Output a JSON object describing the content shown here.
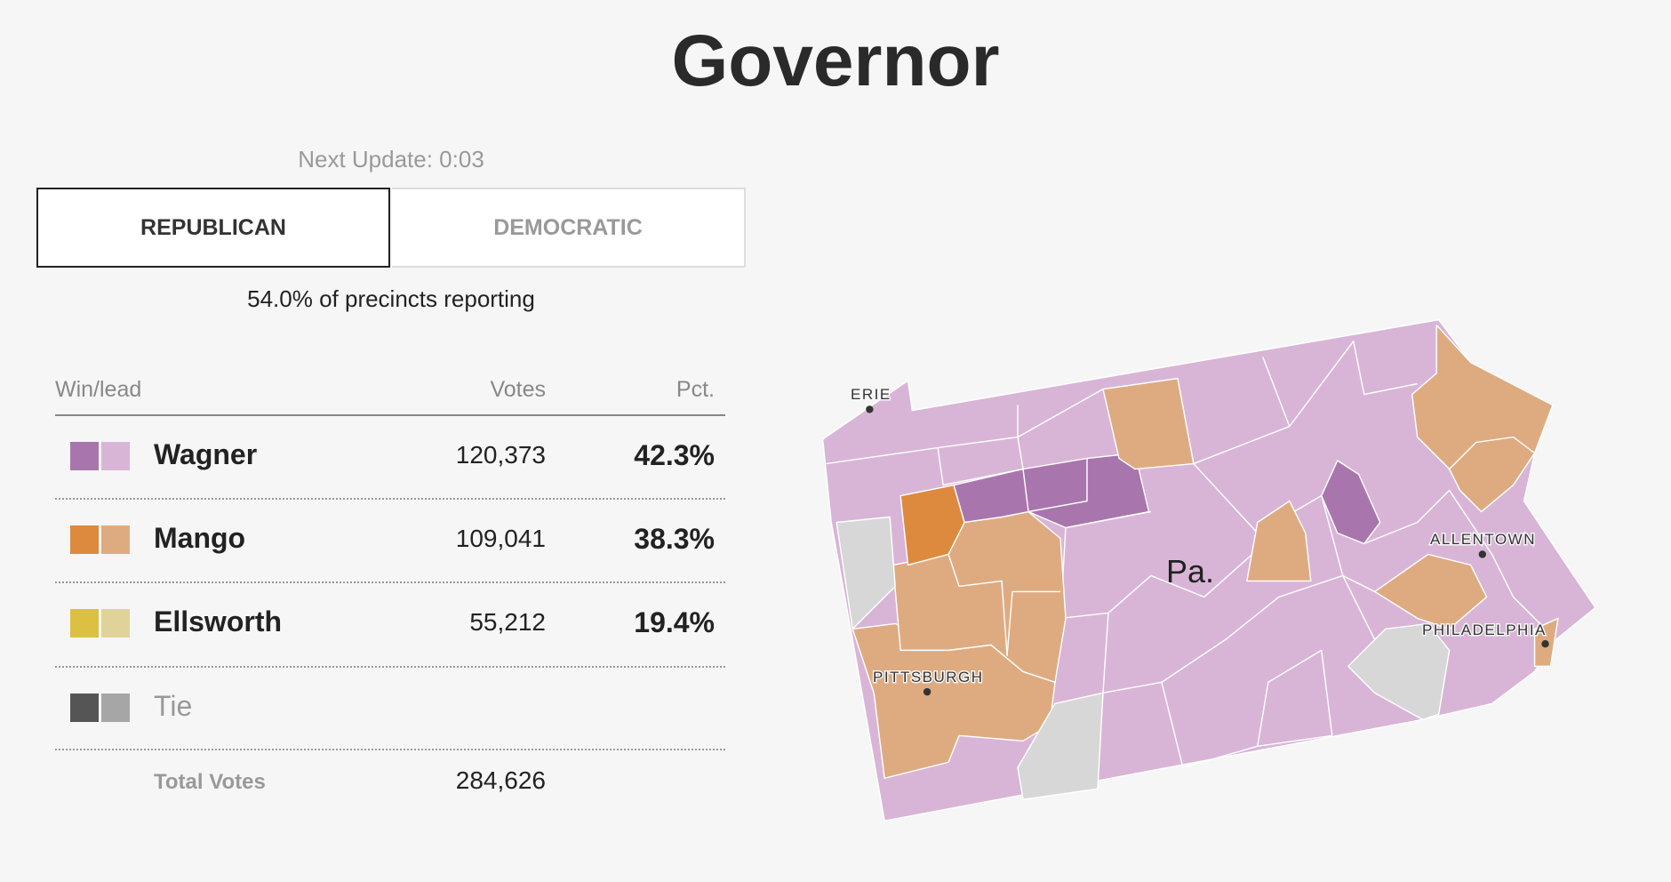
{
  "header": {
    "title": "Governor",
    "next_update": "Next Update: 0:03"
  },
  "tabs": [
    "REPUBLICAN",
    "DEMOCRATIC"
  ],
  "reporting": "54.0% of precincts reporting",
  "table": {
    "headers": [
      "Win/lead",
      "Votes",
      "Pct."
    ],
    "rows": [
      [
        "Wagner",
        "120,373",
        "42.3%"
      ],
      [
        "Mango",
        "109,041",
        "38.3%"
      ],
      [
        "Ellsworth",
        "55,212",
        "19.4%"
      ],
      [
        "Tie"
      ]
    ],
    "total": [
      "Total Votes",
      "284,626"
    ]
  },
  "map": {
    "state": "Pa.",
    "cities": [
      "ERIE",
      "PITTSBURGH",
      "ALLENTOWN",
      "PHILADELPHIA"
    ]
  }
}
